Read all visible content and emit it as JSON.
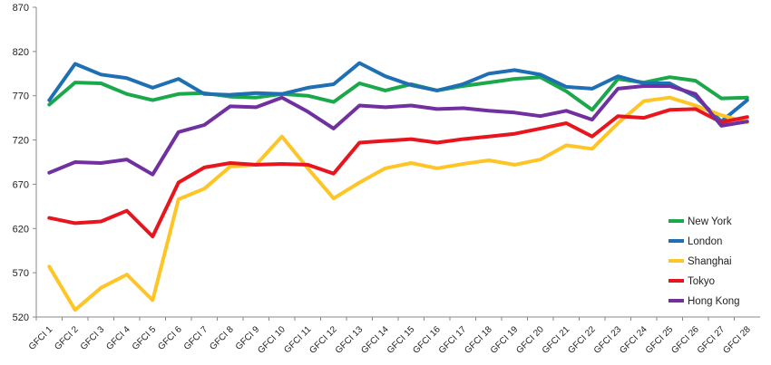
{
  "chart_data": {
    "type": "line",
    "title": "",
    "xlabel": "",
    "ylabel": "",
    "categories": [
      "GFCI 1",
      "GFCI 2",
      "GFCI 3",
      "GFCI 4",
      "GFCI 5",
      "GFCI 6",
      "GFCI 7",
      "GFCI 8",
      "GFCI 9",
      "GFCI 10",
      "GFCI 11",
      "GFCI 12",
      "GFCI 13",
      "GFCI 14",
      "GFCI 15",
      "GFCI 16",
      "GFCI 17",
      "GFCI 18",
      "GFCI 19",
      "GFCI 20",
      "GFCI 21",
      "GFCI 22",
      "GFCI 23",
      "GFCI 24",
      "GFCI 25",
      "GFCI 26",
      "GFCI 27",
      "GFCI 28"
    ],
    "ylim": [
      520,
      870
    ],
    "yticks": [
      520,
      570,
      620,
      670,
      720,
      770,
      820,
      870
    ],
    "grid": false,
    "legend_position": "bottom-right",
    "series": [
      {
        "name": "New York",
        "color": "#1aa84a",
        "values": [
          760,
          785,
          784,
          772,
          765,
          772,
          773,
          769,
          768,
          772,
          770,
          763,
          784,
          776,
          783,
          776,
          781,
          785,
          789,
          791,
          775,
          754,
          789,
          785,
          791,
          787,
          767,
          768
        ]
      },
      {
        "name": "London",
        "color": "#1f6fb4",
        "values": [
          765,
          806,
          794,
          790,
          779,
          789,
          772,
          771,
          773,
          772,
          779,
          783,
          807,
          792,
          782,
          776,
          783,
          795,
          799,
          794,
          780,
          778,
          792,
          784,
          784,
          769,
          741,
          765
        ]
      },
      {
        "name": "Shanghai",
        "color": "#ffc526",
        "values": [
          577,
          528,
          553,
          568,
          539,
          653,
          665,
          690,
          692,
          724,
          688,
          654,
          672,
          688,
          694,
          688,
          693,
          697,
          692,
          698,
          714,
          710,
          739,
          764,
          768,
          759,
          748,
          740
        ]
      },
      {
        "name": "Tokyo",
        "color": "#e8141e",
        "values": [
          632,
          626,
          628,
          640,
          611,
          672,
          689,
          694,
          692,
          693,
          692,
          682,
          717,
          719,
          721,
          717,
          721,
          724,
          727,
          733,
          739,
          724,
          747,
          745,
          754,
          755,
          740,
          746
        ]
      },
      {
        "name": "Hong Kong",
        "color": "#7030a0",
        "values": [
          683,
          695,
          694,
          698,
          681,
          729,
          737,
          758,
          757,
          768,
          752,
          733,
          759,
          757,
          759,
          755,
          756,
          753,
          751,
          747,
          753,
          743,
          778,
          781,
          781,
          772,
          736,
          741
        ]
      }
    ]
  }
}
